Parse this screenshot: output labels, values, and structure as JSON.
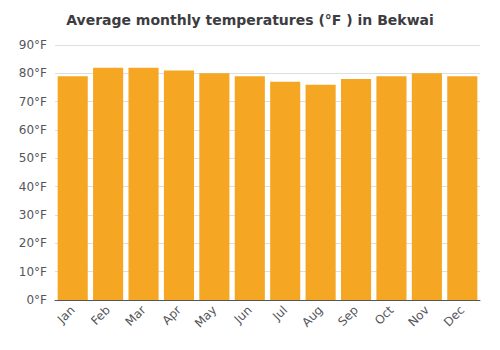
{
  "chart_data": {
    "type": "bar",
    "title": "Average monthly temperatures (°F ) in Bekwai",
    "categories": [
      "Jan",
      "Feb",
      "Mar",
      "Apr",
      "May",
      "Jun",
      "Jul",
      "Aug",
      "Sep",
      "Oct",
      "Nov",
      "Dec"
    ],
    "values": [
      79,
      82,
      82,
      81,
      80,
      79,
      77,
      76,
      78,
      79,
      80,
      79
    ],
    "color": "#F5A623",
    "ylim": [
      0,
      90
    ],
    "yticks": [
      {
        "value": 0,
        "label": "0°F"
      },
      {
        "value": 10,
        "label": "10°F"
      },
      {
        "value": 20,
        "label": "20°F"
      },
      {
        "value": 30,
        "label": "30°F"
      },
      {
        "value": 40,
        "label": "40°F"
      },
      {
        "value": 50,
        "label": "50°F"
      },
      {
        "value": 60,
        "label": "60°F"
      },
      {
        "value": 70,
        "label": "70°F"
      },
      {
        "value": 80,
        "label": "80°F"
      },
      {
        "value": 90,
        "label": "90°F"
      }
    ],
    "grid": true
  }
}
